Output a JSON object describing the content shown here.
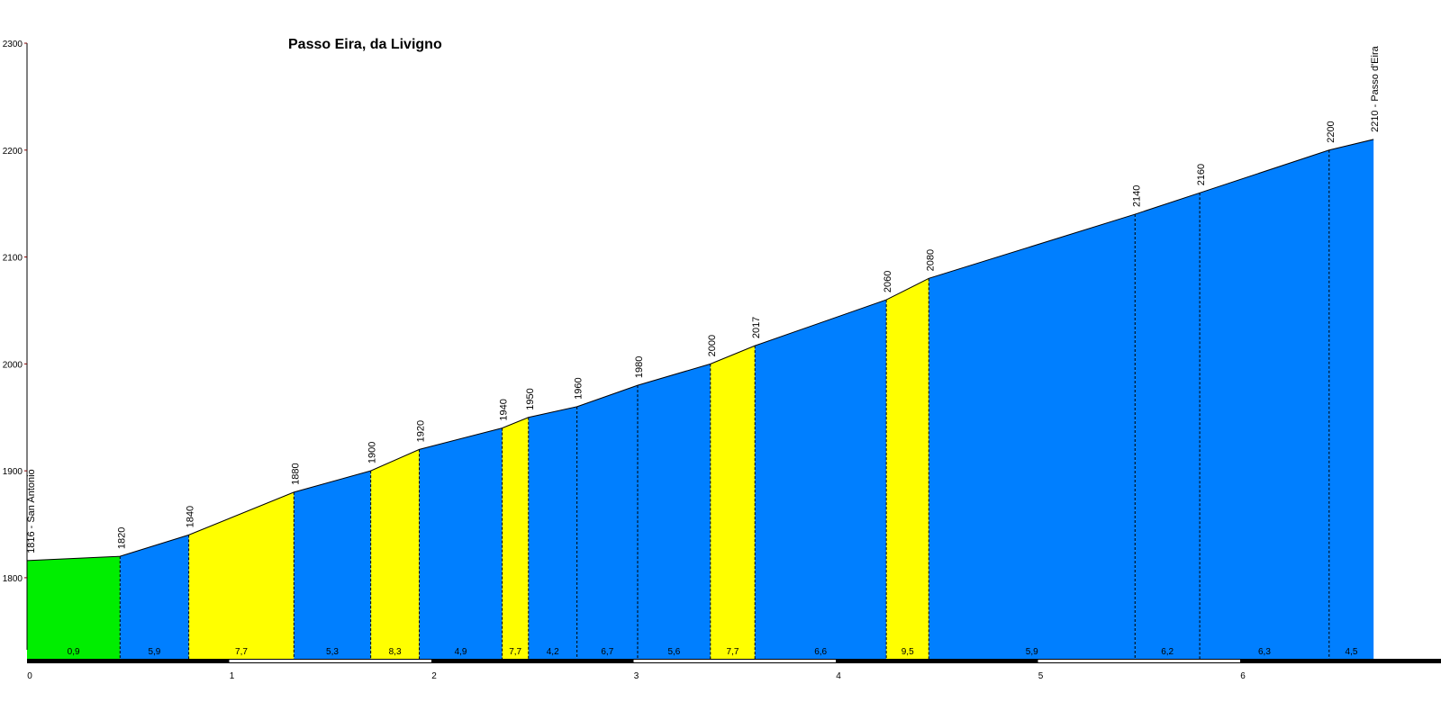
{
  "chart_data": {
    "type": "area",
    "title": "Passo Eira, da Livigno",
    "xlabel": "",
    "ylabel": "",
    "xlim": [
      0,
      7
    ],
    "ylim": [
      1725,
      2300
    ],
    "y_ticks": [
      1800,
      1900,
      2000,
      2100,
      2200,
      2300
    ],
    "x_ticks": [
      0,
      1,
      2,
      3,
      4,
      5,
      6
    ],
    "colors": {
      "green": "#00ee00",
      "blue": "#007fff",
      "yellow": "#ffff00",
      "axis": "#000000",
      "tick_mark": "#800000"
    },
    "points": [
      {
        "km": 0.0,
        "alt": 1816,
        "label": "1816 - San Antonio"
      },
      {
        "km": 0.46,
        "alt": 1820,
        "label": "1820"
      },
      {
        "km": 0.8,
        "alt": 1840,
        "label": "1840"
      },
      {
        "km": 1.32,
        "alt": 1880,
        "label": "1880"
      },
      {
        "km": 1.7,
        "alt": 1900,
        "label": "1900"
      },
      {
        "km": 1.94,
        "alt": 1920,
        "label": "1920"
      },
      {
        "km": 2.35,
        "alt": 1940,
        "label": "1940"
      },
      {
        "km": 2.48,
        "alt": 1950,
        "label": "1950"
      },
      {
        "km": 2.72,
        "alt": 1960,
        "label": "1960"
      },
      {
        "km": 3.02,
        "alt": 1980,
        "label": "1980"
      },
      {
        "km": 3.38,
        "alt": 2000,
        "label": "2000"
      },
      {
        "km": 3.6,
        "alt": 2017,
        "label": "2017"
      },
      {
        "km": 4.25,
        "alt": 2060,
        "label": "2060"
      },
      {
        "km": 4.46,
        "alt": 2080,
        "label": "2080"
      },
      {
        "km": 5.48,
        "alt": 2140,
        "label": "2140"
      },
      {
        "km": 5.8,
        "alt": 2160,
        "label": "2160"
      },
      {
        "km": 6.44,
        "alt": 2200,
        "label": "2200"
      },
      {
        "km": 6.66,
        "alt": 2210,
        "label": "2210 - Passo d'Eira"
      }
    ],
    "segments": [
      {
        "gradient": "0,9",
        "color": "green"
      },
      {
        "gradient": "5,9",
        "color": "blue"
      },
      {
        "gradient": "7,7",
        "color": "yellow"
      },
      {
        "gradient": "5,3",
        "color": "blue"
      },
      {
        "gradient": "8,3",
        "color": "yellow"
      },
      {
        "gradient": "4,9",
        "color": "blue"
      },
      {
        "gradient": "7,7",
        "color": "yellow"
      },
      {
        "gradient": "4,2",
        "color": "blue"
      },
      {
        "gradient": "6,7",
        "color": "blue"
      },
      {
        "gradient": "5,6",
        "color": "blue"
      },
      {
        "gradient": "7,7",
        "color": "yellow"
      },
      {
        "gradient": "6,6",
        "color": "blue"
      },
      {
        "gradient": "9,5",
        "color": "yellow"
      },
      {
        "gradient": "5,9",
        "color": "blue"
      },
      {
        "gradient": "6,2",
        "color": "blue"
      },
      {
        "gradient": "6,3",
        "color": "blue"
      },
      {
        "gradient": "4,5",
        "color": "blue"
      }
    ]
  }
}
